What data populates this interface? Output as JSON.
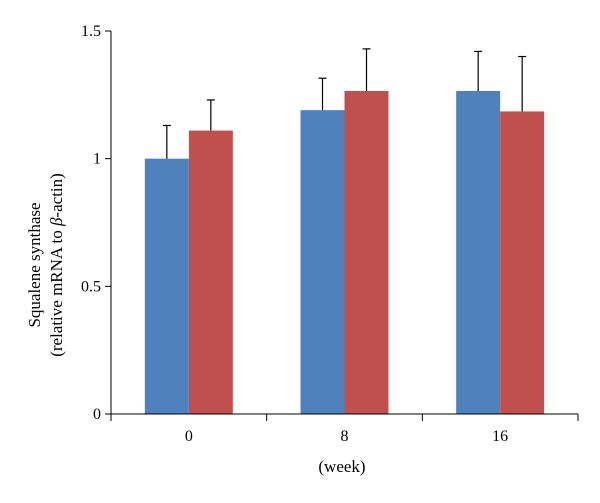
{
  "chart_data": {
    "type": "bar",
    "categories": [
      "0",
      "8",
      "16"
    ],
    "series": [
      {
        "color": "#4f81bd",
        "values": [
          1.0,
          1.19,
          1.265
        ],
        "errors": [
          0.13,
          0.125,
          0.155
        ]
      },
      {
        "color": "#c0504d",
        "values": [
          1.11,
          1.265,
          1.185
        ],
        "errors": [
          0.12,
          0.165,
          0.215
        ]
      }
    ],
    "ylim": [
      0,
      1.5
    ],
    "yticks": [
      0,
      0.5,
      1,
      1.5
    ],
    "ytick_labels": [
      "0",
      "0.5",
      "1",
      "1.5"
    ],
    "xlabel": "(week)",
    "ylabel_line1": "Squalene synthase",
    "ylabel_line2_prefix": "(relative mRNA to ",
    "ylabel_line2_symbol": "β",
    "ylabel_line2_suffix": "-actin)",
    "grid": false,
    "legend": "none"
  }
}
